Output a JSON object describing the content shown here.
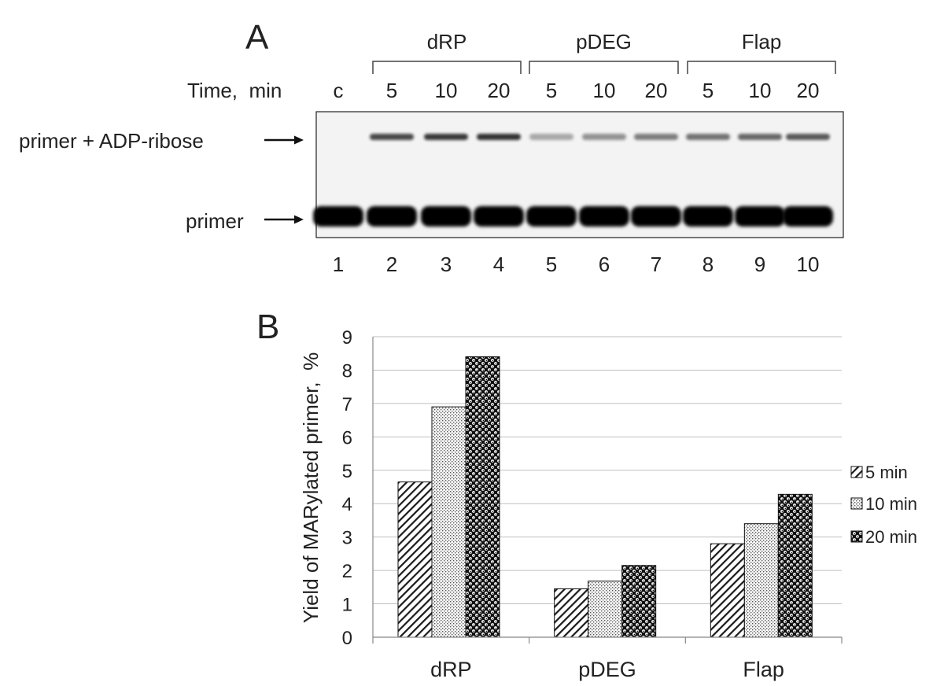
{
  "panel_a": {
    "label": "A",
    "groups": [
      "dRP",
      "pDEG",
      "Flap"
    ],
    "time_label": "Time,  min",
    "lane_times": [
      "c",
      "5",
      "10",
      "20",
      "5",
      "10",
      "20",
      "5",
      "10",
      "20"
    ],
    "lane_numbers": [
      "1",
      "2",
      "3",
      "4",
      "5",
      "6",
      "7",
      "8",
      "9",
      "10"
    ],
    "band_labels": {
      "upper": "primer + ADP-ribose",
      "lower": "primer"
    }
  },
  "panel_b": {
    "label": "B"
  },
  "colors": {
    "ink": "#222222",
    "grid": "#bfbfbf",
    "gel_bg": "#f3f3f3",
    "band": "#0a0a0a"
  },
  "chart_data": {
    "type": "bar",
    "categories": [
      "dRP",
      "pDEG",
      "Flap"
    ],
    "series": [
      {
        "name": "5 min",
        "values": [
          4.65,
          1.45,
          2.8
        ],
        "pattern": "diagonal-hatch"
      },
      {
        "name": "10 min",
        "values": [
          6.9,
          1.68,
          3.4
        ],
        "pattern": "fine-dots"
      },
      {
        "name": "20 min",
        "values": [
          8.4,
          2.15,
          4.28
        ],
        "pattern": "checker-dots"
      }
    ],
    "title": "",
    "xlabel": "",
    "ylabel": "Yield of MARylated primer,  %",
    "ylim": [
      0,
      9
    ],
    "yticks": [
      "0",
      "1",
      "2",
      "3",
      "4",
      "5",
      "6",
      "7",
      "8",
      "9"
    ],
    "grid": true,
    "legend": "right"
  }
}
